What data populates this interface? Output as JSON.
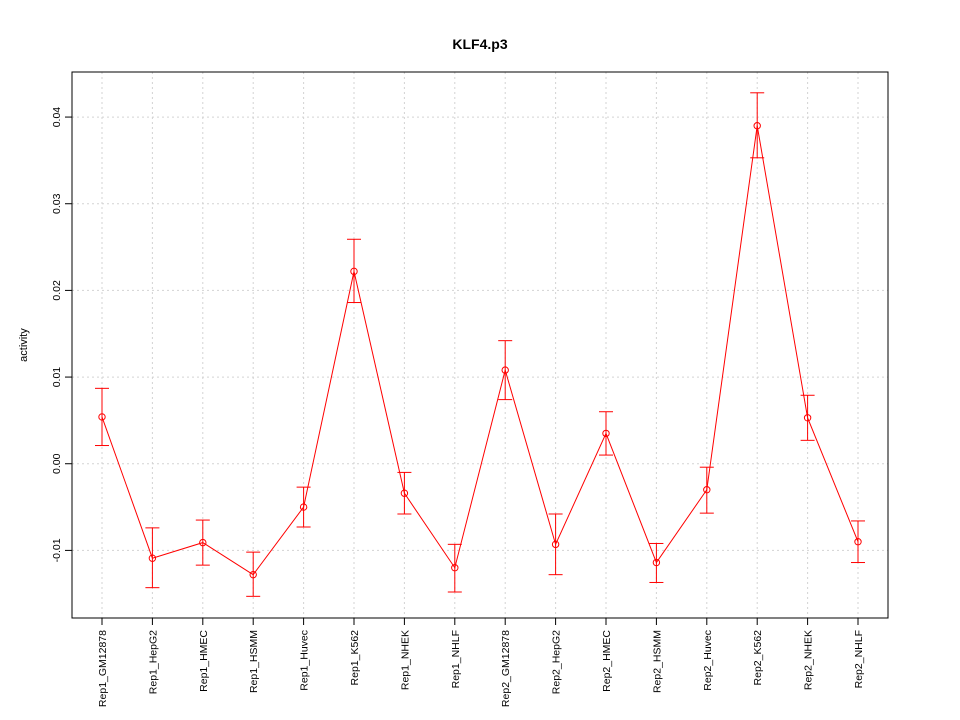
{
  "chart_data": {
    "type": "line",
    "title": "KLF4.p3",
    "xlabel": "",
    "ylabel": "activity",
    "categories": [
      "Rep1_GM12878",
      "Rep1_HepG2",
      "Rep1_HMEC",
      "Rep1_HSMM",
      "Rep1_Huvec",
      "Rep1_K562",
      "Rep1_NHEK",
      "Rep1_NHLF",
      "Rep2_GM12878",
      "Rep2_HepG2",
      "Rep2_HMEC",
      "Rep2_HSMM",
      "Rep2_Huvec",
      "Rep2_K562",
      "Rep2_NHEK",
      "Rep2_NHLF"
    ],
    "values": [
      0.0054,
      -0.0109,
      -0.0091,
      -0.0128,
      -0.005,
      0.0222,
      -0.0034,
      -0.012,
      0.0108,
      -0.0093,
      0.0035,
      -0.0114,
      -0.003,
      0.039,
      0.0053,
      -0.009
    ],
    "err_upper": [
      0.0087,
      -0.0074,
      -0.0065,
      -0.0102,
      -0.0027,
      0.0259,
      -0.001,
      -0.0093,
      0.0142,
      -0.0058,
      0.006,
      -0.0092,
      -0.0004,
      0.0428,
      0.0079,
      -0.0066
    ],
    "err_lower": [
      0.0021,
      -0.0143,
      -0.0117,
      -0.0153,
      -0.0073,
      0.0186,
      -0.0058,
      -0.0148,
      0.0074,
      -0.0128,
      0.001,
      -0.0137,
      -0.0057,
      0.0353,
      0.0027,
      -0.0114
    ],
    "ylim": [
      -0.0178,
      0.0452
    ],
    "yticks": [
      -0.01,
      0.0,
      0.01,
      0.02,
      0.03,
      0.04
    ],
    "ytick_labels": [
      "-0.01",
      "0.00",
      "0.01",
      "0.02",
      "0.03",
      "0.04"
    ],
    "grid": true,
    "color": "#ff0000"
  }
}
